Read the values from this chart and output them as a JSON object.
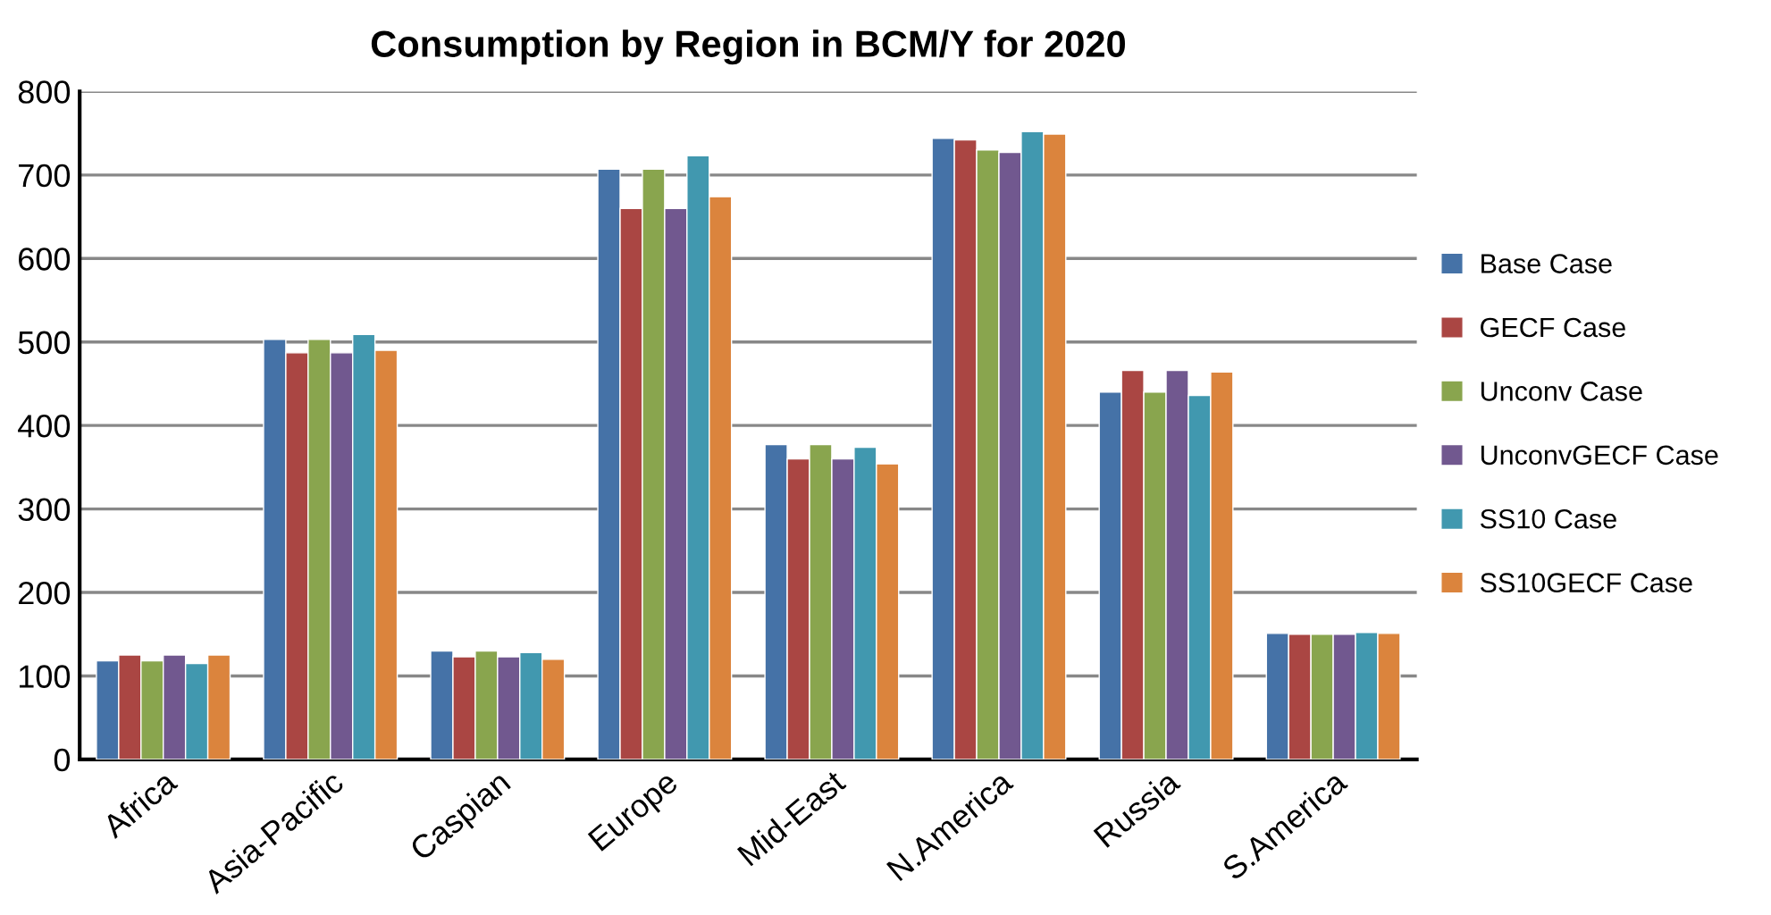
{
  "chart_data": {
    "type": "bar",
    "title": "Consumption by Region in BCM/Y for 2020",
    "categories": [
      "Africa",
      "Asia-Pacific",
      "Caspian",
      "Europe",
      "Mid-East",
      "N.America",
      "Russia",
      "S.America"
    ],
    "series": [
      {
        "name": "Base Case",
        "color": "#4572a7",
        "values": [
          118,
          503,
          130,
          707,
          377,
          744,
          440,
          151
        ]
      },
      {
        "name": "GECF Case",
        "color": "#aa4643",
        "values": [
          125,
          487,
          123,
          660,
          360,
          742,
          466,
          150
        ]
      },
      {
        "name": "Unconv Case",
        "color": "#89a54e",
        "values": [
          118,
          503,
          130,
          707,
          377,
          730,
          440,
          150
        ]
      },
      {
        "name": "UnconvGECF Case",
        "color": "#71588f",
        "values": [
          125,
          487,
          123,
          660,
          360,
          727,
          466,
          150
        ]
      },
      {
        "name": "SS10 Case",
        "color": "#4198af",
        "values": [
          115,
          509,
          128,
          723,
          374,
          752,
          436,
          152
        ]
      },
      {
        "name": "SS10GECF Case",
        "color": "#db843d",
        "values": [
          125,
          490,
          120,
          674,
          354,
          749,
          464,
          151
        ]
      }
    ],
    "ylim": [
      0,
      800
    ],
    "yticks": [
      0,
      100,
      200,
      300,
      400,
      500,
      600,
      700,
      800
    ],
    "grid": "y",
    "legend": "right"
  }
}
